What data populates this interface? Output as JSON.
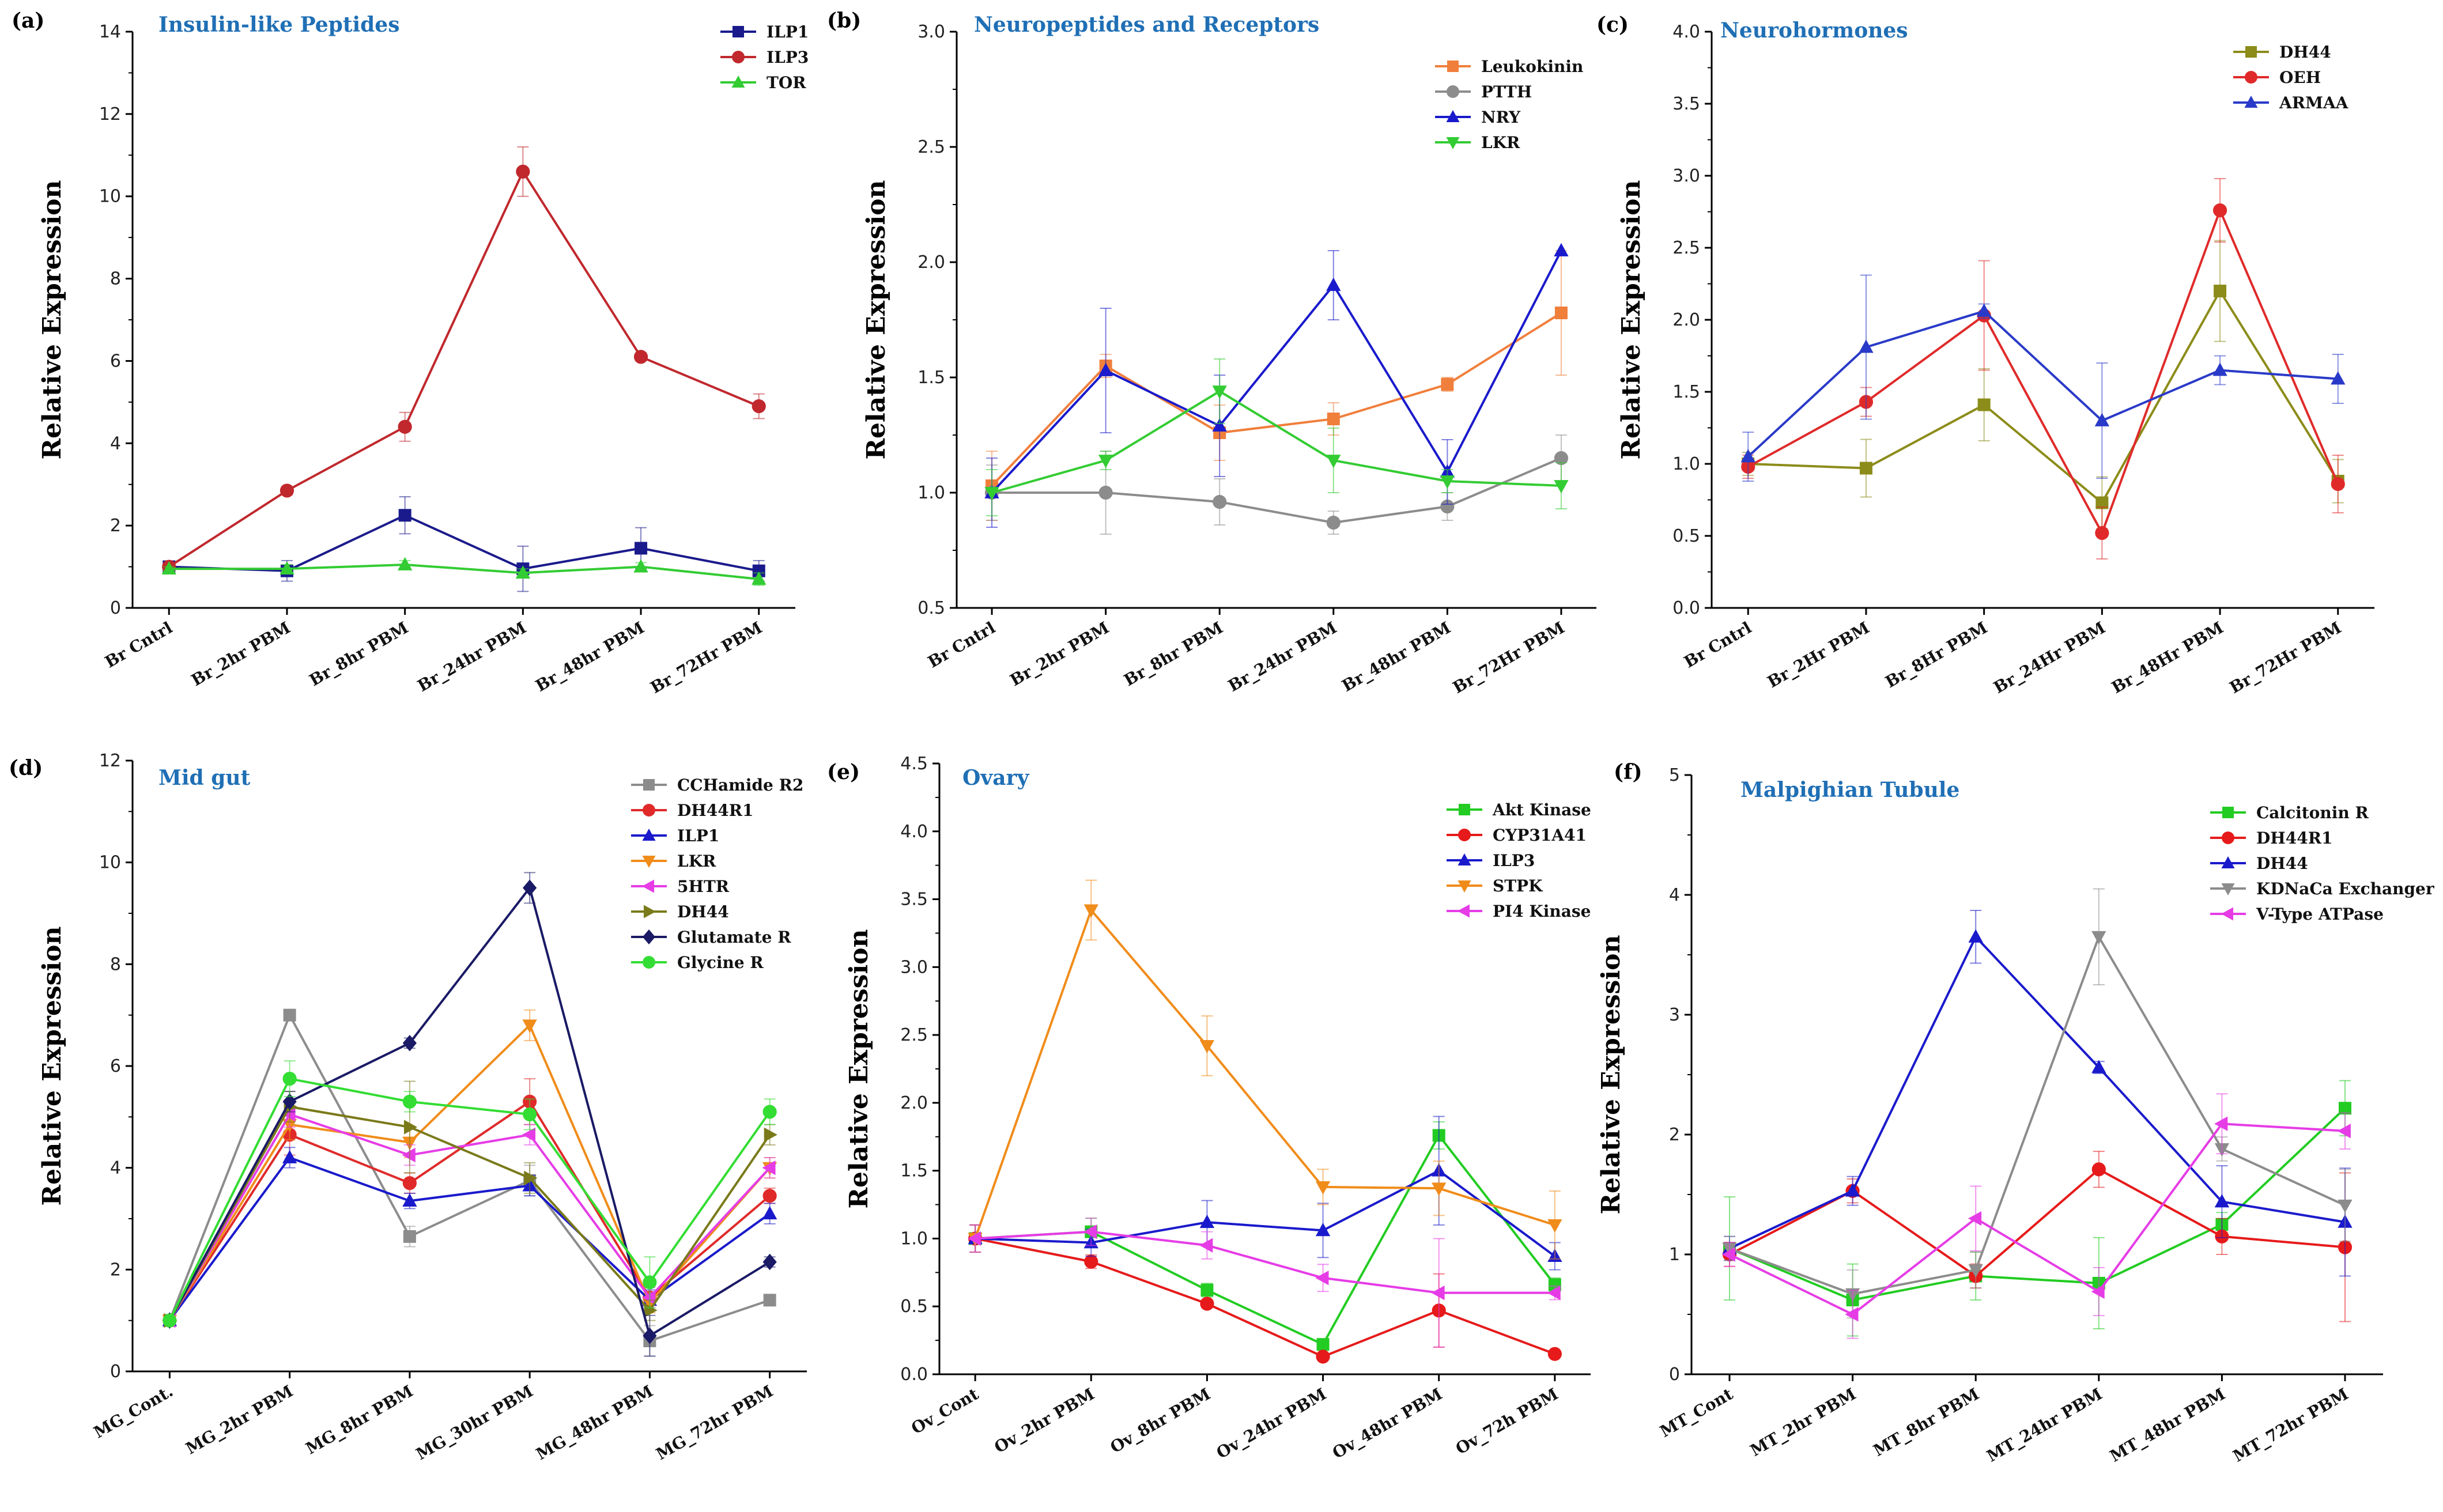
{
  "chart_data": [
    {
      "panel": "(a)",
      "type": "line",
      "title": "Insulin-like Peptides",
      "ylabel": "Relative Expression",
      "xlabel": "",
      "categories": [
        "Br Cntrl",
        "Br_2hr PBM",
        "Br_8hr PBM",
        "Br_24hr PBM",
        "Br_48hr PBM",
        "Br_72Hr PBM"
      ],
      "ylim": [
        0,
        14
      ],
      "yticks": [
        0,
        2,
        4,
        6,
        8,
        10,
        12,
        14
      ],
      "series": [
        {
          "name": "ILP1",
          "color": "#1a1a8c",
          "marker": "square",
          "values": [
            1.0,
            0.9,
            2.25,
            0.95,
            1.45,
            0.9
          ],
          "errors": [
            0.1,
            0.25,
            0.45,
            0.55,
            0.5,
            0.25
          ]
        },
        {
          "name": "ILP3",
          "color": "#c0282d",
          "marker": "circle",
          "values": [
            1.0,
            2.85,
            4.4,
            10.6,
            6.1,
            4.9
          ],
          "errors": [
            0.1,
            0.1,
            0.35,
            0.6,
            0.1,
            0.3
          ]
        },
        {
          "name": "TOR",
          "color": "#33cc33",
          "marker": "triangle-up",
          "values": [
            0.95,
            0.95,
            1.05,
            0.85,
            1.0,
            0.7
          ],
          "errors": [
            0.05,
            0.1,
            0.1,
            0.1,
            0.1,
            0.15
          ]
        }
      ]
    },
    {
      "panel": "(b)",
      "type": "line",
      "title": "Neuropeptides and Receptors",
      "ylabel": "Relative Expression",
      "xlabel": "",
      "categories": [
        "Br Cntrl",
        "Br_2hr PBM",
        "Br_8hr PBM",
        "Br_24hr PBM",
        "Br_48hr PBM",
        "Br_72Hr PBM"
      ],
      "ylim": [
        0.5,
        3.0
      ],
      "yticks": [
        0.5,
        1.0,
        1.5,
        2.0,
        2.5,
        3.0
      ],
      "series": [
        {
          "name": "Leukokinin",
          "color": "#f07f3c",
          "marker": "square",
          "values": [
            1.03,
            1.55,
            1.26,
            1.32,
            1.47,
            1.78
          ],
          "errors": [
            0.15,
            0.05,
            0.12,
            0.07,
            0.03,
            0.27
          ]
        },
        {
          "name": "PTTH",
          "color": "#8c8c8c",
          "marker": "circle",
          "values": [
            1.0,
            1.0,
            0.96,
            0.87,
            0.94,
            1.15
          ],
          "errors": [
            0.12,
            0.18,
            0.1,
            0.05,
            0.06,
            0.1
          ]
        },
        {
          "name": "NRY",
          "color": "#1a1acc",
          "marker": "triangle-up",
          "values": [
            1.0,
            1.53,
            1.29,
            1.9,
            1.09,
            2.05
          ],
          "errors": [
            0.15,
            0.27,
            0.22,
            0.15,
            0.14,
            0.0
          ]
        },
        {
          "name": "LKR",
          "color": "#33cc33",
          "marker": "triangle-down",
          "values": [
            1.0,
            1.14,
            1.44,
            1.14,
            1.05,
            1.03
          ],
          "errors": [
            0.1,
            0.04,
            0.14,
            0.14,
            0.05,
            0.1
          ]
        }
      ]
    },
    {
      "panel": "(c)",
      "type": "line",
      "title": "Neurohormones",
      "ylabel": "Relative Expression",
      "xlabel": "",
      "categories": [
        "Br Cntrl",
        "Br_2Hr PBM",
        "Br_8Hr PBM",
        "Br_24Hr PBM",
        "Br_48Hr PBM",
        "Br_72Hr PBM"
      ],
      "ylim": [
        0.0,
        4.0
      ],
      "yticks": [
        0.0,
        0.5,
        1.0,
        1.5,
        2.0,
        2.5,
        3.0,
        3.5,
        4.0
      ],
      "series": [
        {
          "name": "DH44",
          "color": "#8c8c1a",
          "marker": "square",
          "values": [
            1.0,
            0.97,
            1.41,
            0.73,
            2.2,
            0.88
          ],
          "errors": [
            0.08,
            0.2,
            0.25,
            0.18,
            0.35,
            0.15
          ]
        },
        {
          "name": "OEH",
          "color": "#e02a2a",
          "marker": "circle",
          "values": [
            0.98,
            1.43,
            2.03,
            0.52,
            2.76,
            0.86
          ],
          "errors": [
            0.08,
            0.1,
            0.38,
            0.18,
            0.22,
            0.2
          ]
        },
        {
          "name": "ARMAA",
          "color": "#2a3ac8",
          "marker": "triangle-up",
          "values": [
            1.05,
            1.81,
            2.06,
            1.3,
            1.65,
            1.59
          ],
          "errors": [
            0.17,
            0.5,
            0.05,
            0.4,
            0.1,
            0.17
          ]
        }
      ]
    },
    {
      "panel": "(d)",
      "type": "line",
      "title": "Mid gut",
      "ylabel": "Relative Expression",
      "xlabel": "",
      "categories": [
        "MG_Cont.",
        "MG_2hr PBM",
        "MG_8hr PBM",
        "MG_30hr PBM",
        "MG_48hr PBM",
        "MG_72hr PBM"
      ],
      "ylim": [
        0,
        12
      ],
      "yticks": [
        0,
        2,
        4,
        6,
        8,
        10,
        12
      ],
      "series": [
        {
          "name": "CCHamide R2",
          "color": "#8c8c8c",
          "marker": "square",
          "values": [
            1.0,
            7.0,
            2.65,
            3.75,
            0.6,
            1.4
          ],
          "errors": [
            0.05,
            0.1,
            0.2,
            0.3,
            0.3,
            0.1
          ]
        },
        {
          "name": "DH44R1",
          "color": "#e02a2a",
          "marker": "circle",
          "values": [
            1.0,
            4.65,
            3.7,
            5.3,
            1.45,
            3.45
          ],
          "errors": [
            0.05,
            0.4,
            0.2,
            0.45,
            0.25,
            0.15
          ]
        },
        {
          "name": "ILP1",
          "color": "#1a1acc",
          "marker": "triangle-up",
          "values": [
            1.0,
            4.2,
            3.35,
            3.65,
            1.4,
            3.1
          ],
          "errors": [
            0.05,
            0.2,
            0.15,
            0.2,
            0.2,
            0.2
          ]
        },
        {
          "name": "LKR",
          "color": "#f08c1a",
          "marker": "triangle-down",
          "values": [
            1.0,
            4.85,
            4.5,
            6.8,
            1.35,
            4.0
          ],
          "errors": [
            0.05,
            0.3,
            0.3,
            0.3,
            0.2,
            0.2
          ]
        },
        {
          "name": "5HTR",
          "color": "#e63ce6",
          "marker": "triangle-left",
          "values": [
            1.0,
            5.05,
            4.25,
            4.65,
            1.45,
            4.0
          ],
          "errors": [
            0.05,
            0.25,
            0.2,
            0.2,
            0.2,
            0.2
          ]
        },
        {
          "name": "DH44",
          "color": "#7a7a1a",
          "marker": "triangle-right",
          "values": [
            1.0,
            5.2,
            4.8,
            3.8,
            1.2,
            4.65
          ],
          "errors": [
            0.05,
            0.3,
            0.9,
            0.3,
            0.2,
            0.2
          ]
        },
        {
          "name": "Glutamate R",
          "color": "#1a1a66",
          "marker": "diamond",
          "values": [
            1.0,
            5.3,
            6.45,
            9.5,
            0.7,
            2.15
          ],
          "errors": [
            0.05,
            0.2,
            0.1,
            0.3,
            0.4,
            0.1
          ]
        },
        {
          "name": "Glycine R",
          "color": "#33dd33",
          "marker": "circle",
          "values": [
            1.0,
            5.75,
            5.3,
            5.05,
            1.75,
            5.1
          ],
          "errors": [
            0.05,
            0.35,
            0.2,
            0.3,
            0.5,
            0.25
          ]
        }
      ]
    },
    {
      "panel": "(e)",
      "type": "line",
      "title": "Ovary",
      "ylabel": "Relative Expression",
      "xlabel": "",
      "categories": [
        "Ov_Cont",
        "Ov_2hr PBM",
        "Ov_8hr PBM",
        "Ov_24hr PBM",
        "Ov_48hr PBM",
        "Ov_72h PBM"
      ],
      "ylim": [
        0.0,
        4.5
      ],
      "yticks": [
        0.0,
        0.5,
        1.0,
        1.5,
        2.0,
        2.5,
        3.0,
        3.5,
        4.0,
        4.5
      ],
      "series": [
        {
          "name": "Akt Kinase",
          "color": "#22cc22",
          "marker": "square",
          "values": [
            1.0,
            1.05,
            0.62,
            0.22,
            1.76,
            0.66
          ],
          "errors": [
            0.1,
            0.1,
            0.05,
            0.02,
            0.1,
            0.05
          ]
        },
        {
          "name": "CYP31A41",
          "color": "#e61a1a",
          "marker": "circle",
          "values": [
            1.0,
            0.83,
            0.52,
            0.13,
            0.47,
            0.15
          ],
          "errors": [
            0.1,
            0.05,
            0.03,
            0.02,
            0.27,
            0.02
          ]
        },
        {
          "name": "ILP3",
          "color": "#1a1acc",
          "marker": "triangle-up",
          "values": [
            1.0,
            0.97,
            1.12,
            1.06,
            1.5,
            0.87
          ],
          "errors": [
            0.1,
            0.1,
            0.16,
            0.2,
            0.4,
            0.1
          ]
        },
        {
          "name": "STPK",
          "color": "#f08c1a",
          "marker": "triangle-down",
          "values": [
            1.0,
            3.42,
            2.42,
            1.38,
            1.37,
            1.1
          ],
          "errors": [
            0.1,
            0.22,
            0.22,
            0.13,
            0.2,
            0.25
          ]
        },
        {
          "name": "PI4 Kinase",
          "color": "#e63ce6",
          "marker": "triangle-left",
          "values": [
            1.0,
            1.05,
            0.95,
            0.71,
            0.6,
            0.6
          ],
          "errors": [
            0.1,
            0.1,
            0.1,
            0.1,
            0.4,
            0.05
          ]
        }
      ]
    },
    {
      "panel": "(f)",
      "type": "line",
      "title": "Malpighian Tubule",
      "ylabel": "Relative Expression",
      "xlabel": "",
      "categories": [
        "MT_Cont",
        "MT_2hr PBM",
        "MT_8hr PBM",
        "MT_24hr PBM",
        "MT_48hr PBM",
        "MT_72hr PBM"
      ],
      "ylim": [
        0,
        5
      ],
      "yticks": [
        0,
        1,
        2,
        3,
        4,
        5
      ],
      "series": [
        {
          "name": "Calcitonin R",
          "color": "#22cc22",
          "marker": "square",
          "values": [
            1.05,
            0.62,
            0.82,
            0.76,
            1.25,
            2.22
          ],
          "errors": [
            0.43,
            0.3,
            0.2,
            0.38,
            0.1,
            0.23
          ]
        },
        {
          "name": "DH44R1",
          "color": "#e61a1a",
          "marker": "circle",
          "values": [
            1.0,
            1.53,
            0.82,
            1.71,
            1.15,
            1.06
          ],
          "errors": [
            0.1,
            0.1,
            0.1,
            0.15,
            0.15,
            0.62
          ]
        },
        {
          "name": "DH44",
          "color": "#1a1acc",
          "marker": "triangle-up",
          "values": [
            1.05,
            1.53,
            3.65,
            2.56,
            1.44,
            1.27
          ],
          "errors": [
            0.1,
            0.12,
            0.22,
            0.05,
            0.3,
            0.45
          ]
        },
        {
          "name": "KDNaCa Exchanger",
          "color": "#8c8c8c",
          "marker": "triangle-down",
          "values": [
            1.05,
            0.67,
            0.87,
            3.65,
            1.88,
            1.41
          ],
          "errors": [
            0.1,
            0.2,
            0.15,
            0.4,
            0.1,
            0.3
          ]
        },
        {
          "name": "V-Type ATPase",
          "color": "#e63ce6",
          "marker": "triangle-left",
          "values": [
            1.0,
            0.5,
            1.3,
            0.69,
            2.09,
            2.03
          ],
          "errors": [
            0.1,
            0.2,
            0.27,
            0.2,
            0.25,
            0.15
          ]
        }
      ]
    }
  ]
}
